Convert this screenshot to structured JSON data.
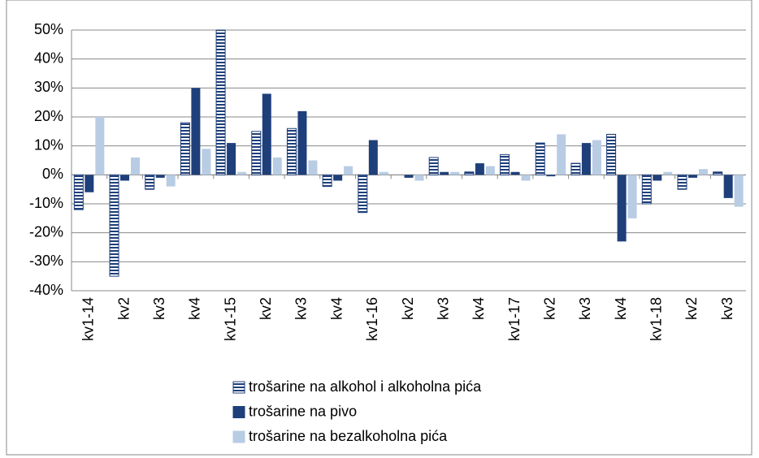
{
  "chart_data": {
    "type": "bar",
    "categories": [
      "kv1-14",
      "kv2",
      "kv3",
      "kv4",
      "kv1-15",
      "kv2",
      "kv3",
      "kv4",
      "kv1-16",
      "kv2",
      "kv3",
      "kv4",
      "kv1-17",
      "kv2",
      "kv3",
      "kv4",
      "kv1-18",
      "kv2",
      "kv3"
    ],
    "series": [
      {
        "name": "trošarine na alkohol i alkoholna pića",
        "color": "#1f3f7a",
        "hatch": true,
        "values": [
          -12,
          -35,
          -5,
          18,
          50,
          15,
          16,
          -4,
          -13,
          0,
          6,
          1,
          7,
          11,
          4,
          14,
          -10,
          -5,
          1
        ]
      },
      {
        "name": "trošarine na pivo",
        "color": "#1f3f7a",
        "values": [
          -6,
          -2,
          -1,
          30,
          11,
          28,
          22,
          -2,
          12,
          -1,
          1,
          4,
          1,
          -0.5,
          11,
          -23,
          -2,
          -1,
          -8
        ]
      },
      {
        "name": "trošarine na bezalkoholna pića",
        "color": "#b8cce4",
        "values": [
          20,
          6,
          -4,
          9,
          1,
          6,
          5,
          3,
          1,
          -2,
          1,
          3,
          -2,
          14,
          12,
          -15,
          1,
          2,
          -11
        ]
      }
    ],
    "ylim": [
      -40,
      50
    ],
    "yticks": [
      {
        "value": -40,
        "label": "-40%"
      },
      {
        "value": -30,
        "label": "-30%"
      },
      {
        "value": -20,
        "label": "-20%"
      },
      {
        "value": -10,
        "label": "-10%"
      },
      {
        "value": 0,
        "label": "0%"
      },
      {
        "value": 10,
        "label": "10%"
      },
      {
        "value": 20,
        "label": "20%"
      },
      {
        "value": 30,
        "label": "30%"
      },
      {
        "value": 40,
        "label": "40%"
      },
      {
        "value": 50,
        "label": "50%"
      }
    ],
    "grid": true,
    "legend": "bottom"
  }
}
